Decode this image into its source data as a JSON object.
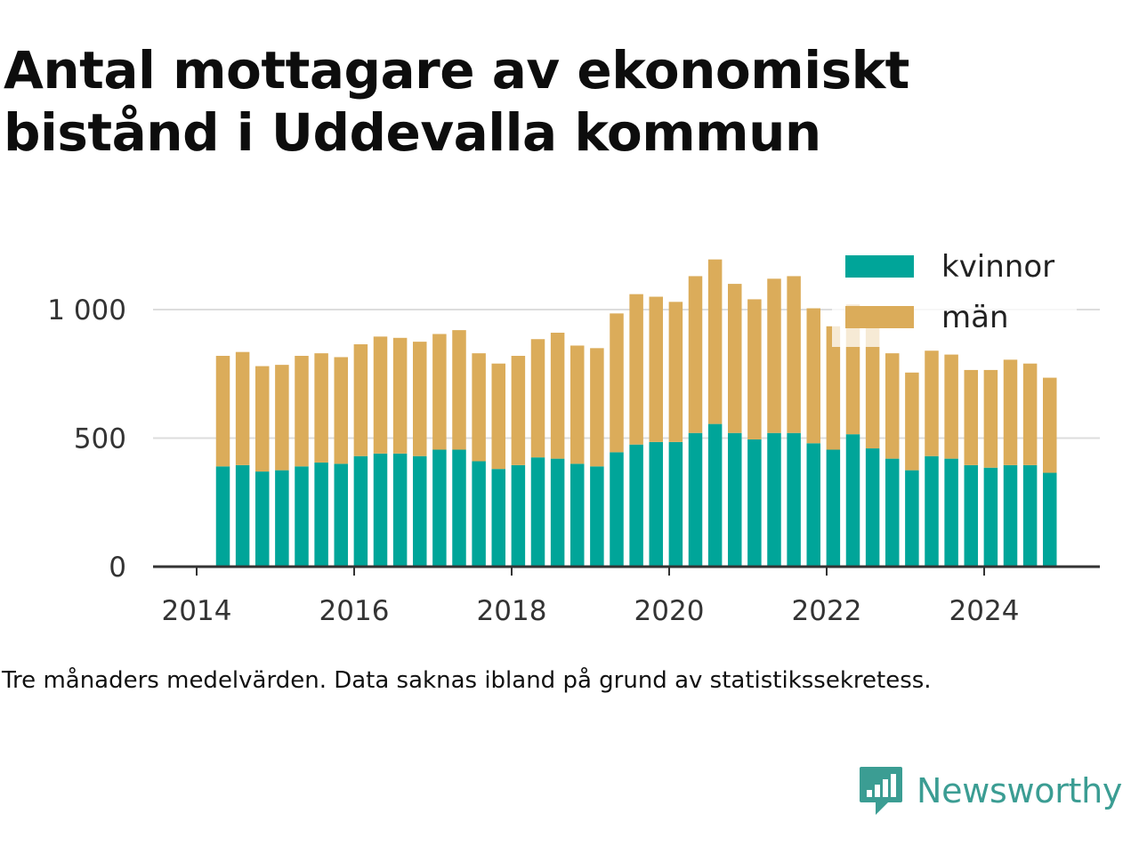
{
  "title": "Antal mottagare av ekonomiskt bistånd i Uddevalla kommun",
  "note": "Tre månaders medelvärden. Data saknas ibland på grund av statistikssekretess.",
  "brand": {
    "name": "Newsworthy",
    "icon": "newsworthy-logo-icon"
  },
  "colors": {
    "kvinnor": "#00a599",
    "man": "#dbac5a",
    "grid": "#dddddd",
    "axis": "#333333",
    "brand": "#3b9d93"
  },
  "chart_data": {
    "type": "bar",
    "stacked": true,
    "x_ticks": [
      "2014",
      "2016",
      "2018",
      "2020",
      "2022",
      "2024"
    ],
    "y_ticks": [
      "0",
      "500",
      "1 000"
    ],
    "ylim": [
      0,
      1200
    ],
    "grid": true,
    "legend_position": "top-right",
    "x": [
      "2014-05",
      "2014-08",
      "2014-11",
      "2015-02",
      "2015-05",
      "2015-08",
      "2015-11",
      "2016-02",
      "2016-05",
      "2016-08",
      "2016-11",
      "2017-02",
      "2017-05",
      "2017-08",
      "2017-11",
      "2018-02",
      "2018-05",
      "2018-08",
      "2018-11",
      "2019-02",
      "2019-05",
      "2019-08",
      "2019-11",
      "2020-02",
      "2020-05",
      "2020-08",
      "2020-11",
      "2021-02",
      "2021-05",
      "2021-08",
      "2021-11",
      "2022-02",
      "2022-05",
      "2022-08",
      "2022-11",
      "2023-02",
      "2023-05",
      "2023-08",
      "2023-11",
      "2024-02",
      "2024-05",
      "2024-08",
      "2024-11"
    ],
    "series": [
      {
        "name": "kvinnor",
        "color": "#00a599",
        "values": [
          390,
          395,
          370,
          375,
          390,
          405,
          400,
          430,
          440,
          440,
          430,
          455,
          455,
          410,
          380,
          395,
          425,
          420,
          400,
          390,
          445,
          475,
          485,
          485,
          520,
          555,
          520,
          495,
          520,
          520,
          480,
          455,
          515,
          460,
          420,
          375,
          430,
          420,
          395,
          385,
          395,
          395,
          365
        ]
      },
      {
        "name": "män",
        "color": "#dbac5a",
        "values": [
          430,
          440,
          410,
          410,
          430,
          425,
          415,
          435,
          455,
          450,
          445,
          450,
          465,
          420,
          410,
          425,
          460,
          490,
          460,
          460,
          540,
          585,
          565,
          545,
          610,
          640,
          580,
          545,
          600,
          610,
          525,
          480,
          505,
          500,
          410,
          380,
          410,
          405,
          370,
          380,
          410,
          395,
          370
        ]
      }
    ]
  }
}
